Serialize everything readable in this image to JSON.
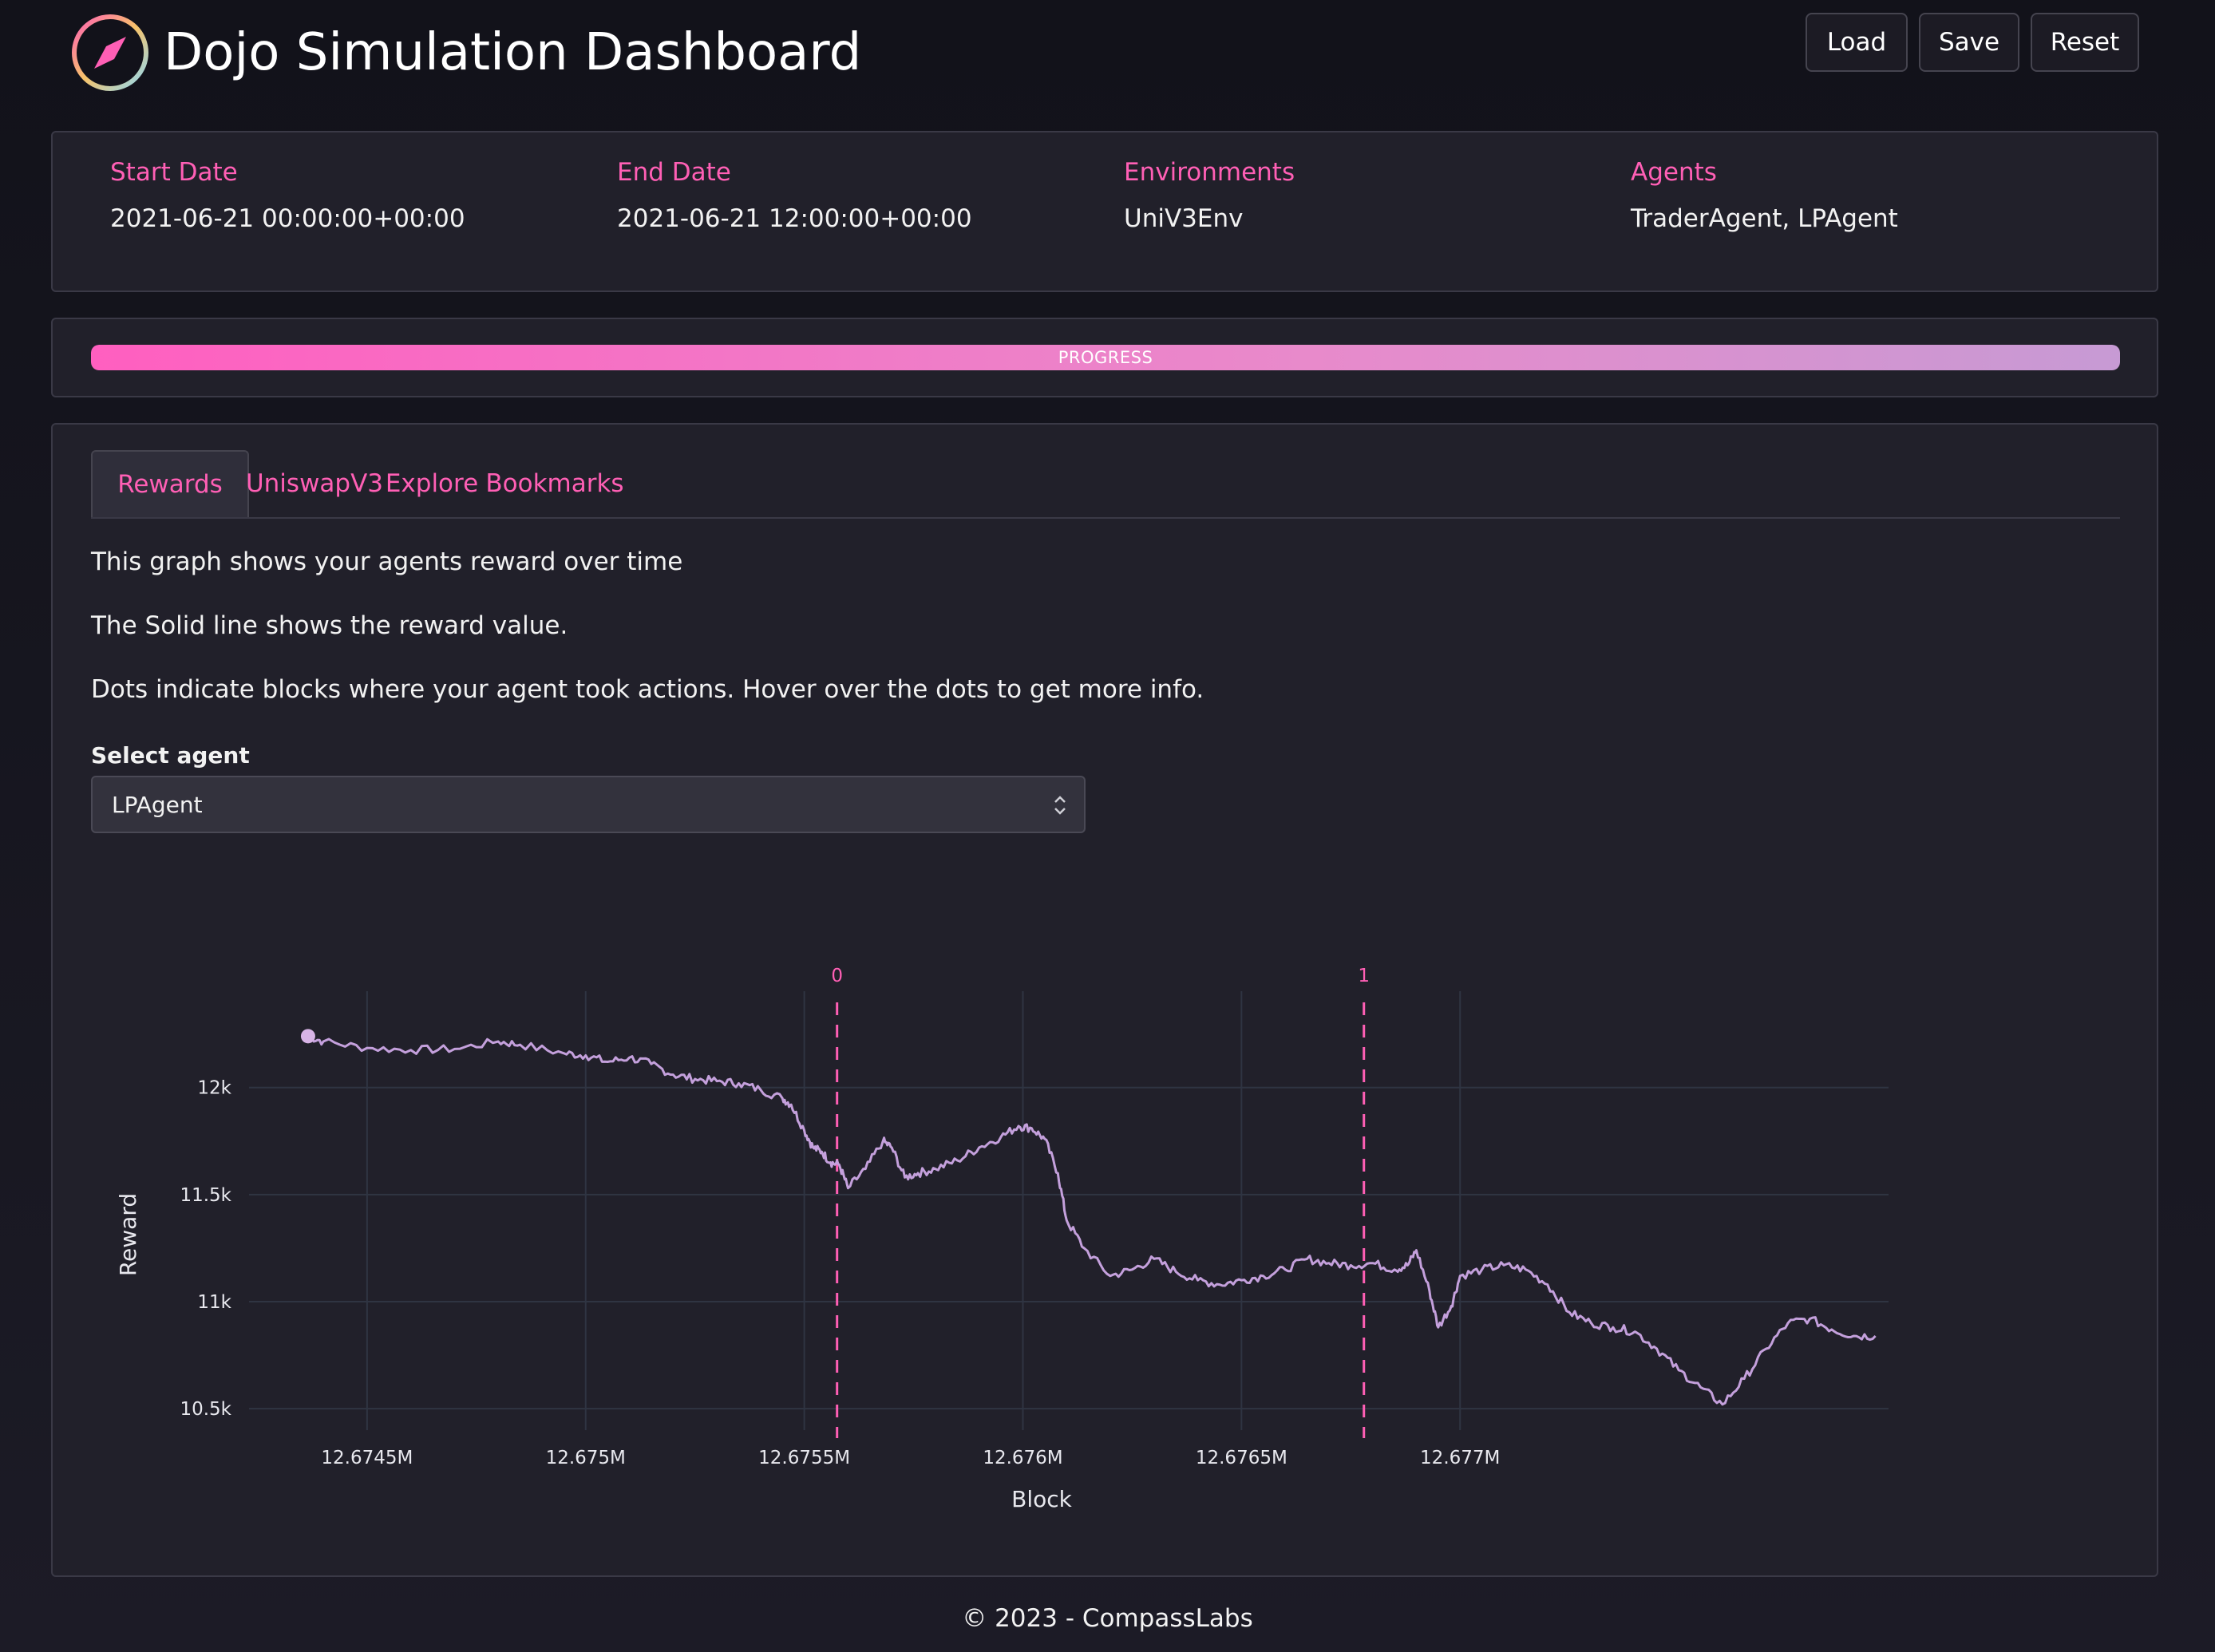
{
  "header": {
    "title": "Dojo Simulation Dashboard",
    "logo_icon": "compass-icon",
    "buttons": {
      "load": "Load",
      "save": "Save",
      "reset": "Reset"
    }
  },
  "info": [
    {
      "label": "Start Date",
      "value": "2021-06-21 00:00:00+00:00"
    },
    {
      "label": "End Date",
      "value": "2021-06-21 12:00:00+00:00"
    },
    {
      "label": "Environments",
      "value": "UniV3Env"
    },
    {
      "label": "Agents",
      "value": "TraderAgent, LPAgent"
    }
  ],
  "progress": {
    "label": "PROGRESS",
    "value": 1.0
  },
  "tabs": [
    {
      "label": "Rewards",
      "active": true
    },
    {
      "label": "UniswapV3",
      "active": false
    },
    {
      "label": "Explore",
      "active": false
    },
    {
      "label": "Bookmarks",
      "active": false
    }
  ],
  "description": [
    "This graph shows your agents reward over time",
    "The Solid line shows the reward value.",
    "Dots indicate blocks where your agent took actions. Hover over the dots to get more info."
  ],
  "agent_select": {
    "label": "Select agent",
    "value": "LPAgent"
  },
  "colors": {
    "accent": "#ff5fb5",
    "line": "#c4a0dc",
    "panel": "#21202a"
  },
  "chart_data": {
    "type": "line",
    "xlabel": "Block",
    "ylabel": "Reward",
    "xlim": [
      12674230,
      12677980
    ],
    "ylim": [
      10400,
      12450
    ],
    "x_ticks": [
      {
        "value": 12674500,
        "label": "12.6745M"
      },
      {
        "value": 12675000,
        "label": "12.675M"
      },
      {
        "value": 12675500,
        "label": "12.6755M"
      },
      {
        "value": 12676000,
        "label": "12.676M"
      },
      {
        "value": 12676500,
        "label": "12.6765M"
      },
      {
        "value": 12677000,
        "label": "12.677M"
      }
    ],
    "y_ticks": [
      {
        "value": 10500,
        "label": "10.5k"
      },
      {
        "value": 11000,
        "label": "11k"
      },
      {
        "value": 11500,
        "label": "11.5k"
      },
      {
        "value": 12000,
        "label": "12k"
      }
    ],
    "grid": true,
    "series": [
      {
        "values": [
          [
            12674365,
            12240
          ],
          [
            12674400,
            12215
          ],
          [
            12674500,
            12185
          ],
          [
            12674600,
            12175
          ],
          [
            12674700,
            12180
          ],
          [
            12674800,
            12215
          ],
          [
            12674850,
            12200
          ],
          [
            12674950,
            12160
          ],
          [
            12675000,
            12150
          ],
          [
            12675050,
            12120
          ],
          [
            12675100,
            12140
          ],
          [
            12675150,
            12110
          ],
          [
            12675200,
            12060
          ],
          [
            12675250,
            12040
          ],
          [
            12675300,
            12030
          ],
          [
            12675350,
            12020
          ],
          [
            12675400,
            11990
          ],
          [
            12675450,
            11950
          ],
          [
            12675470,
            11920
          ],
          [
            12675500,
            11800
          ],
          [
            12675520,
            11720
          ],
          [
            12675540,
            11700
          ],
          [
            12675560,
            11650
          ],
          [
            12675580,
            11640
          ],
          [
            12675600,
            11530
          ],
          [
            12675640,
            11620
          ],
          [
            12675680,
            11750
          ],
          [
            12675700,
            11720
          ],
          [
            12675730,
            11580
          ],
          [
            12675760,
            11600
          ],
          [
            12675800,
            11620
          ],
          [
            12675850,
            11660
          ],
          [
            12675900,
            11720
          ],
          [
            12675950,
            11770
          ],
          [
            12675990,
            11820
          ],
          [
            12676020,
            11810
          ],
          [
            12676050,
            11760
          ],
          [
            12676080,
            11600
          ],
          [
            12676100,
            11380
          ],
          [
            12676140,
            11250
          ],
          [
            12676200,
            11120
          ],
          [
            12676250,
            11150
          ],
          [
            12676300,
            11200
          ],
          [
            12676350,
            11140
          ],
          [
            12676400,
            11100
          ],
          [
            12676450,
            11080
          ],
          [
            12676500,
            11100
          ],
          [
            12676550,
            11120
          ],
          [
            12676600,
            11150
          ],
          [
            12676650,
            11200
          ],
          [
            12676700,
            11180
          ],
          [
            12676750,
            11170
          ],
          [
            12676800,
            11180
          ],
          [
            12676850,
            11150
          ],
          [
            12676880,
            11170
          ],
          [
            12676900,
            11240
          ],
          [
            12676930,
            11050
          ],
          [
            12676950,
            10880
          ],
          [
            12676980,
            10980
          ],
          [
            12677000,
            11120
          ],
          [
            12677050,
            11150
          ],
          [
            12677100,
            11170
          ],
          [
            12677150,
            11150
          ],
          [
            12677200,
            11080
          ],
          [
            12677250,
            10950
          ],
          [
            12677300,
            10900
          ],
          [
            12677350,
            10880
          ],
          [
            12677400,
            10860
          ],
          [
            12677450,
            10780
          ],
          [
            12677500,
            10680
          ],
          [
            12677550,
            10600
          ],
          [
            12677600,
            10520
          ],
          [
            12677650,
            10640
          ],
          [
            12677700,
            10780
          ],
          [
            12677750,
            10900
          ],
          [
            12677800,
            10920
          ],
          [
            12677850,
            10870
          ],
          [
            12677900,
            10840
          ],
          [
            12677950,
            10840
          ]
        ]
      }
    ],
    "action_dots": [
      [
        12674365,
        12240
      ]
    ],
    "markers": [
      {
        "x": 12675575,
        "label": "0"
      },
      {
        "x": 12676780,
        "label": "1"
      }
    ]
  },
  "footer": {
    "text": "© 2023 - CompassLabs"
  }
}
